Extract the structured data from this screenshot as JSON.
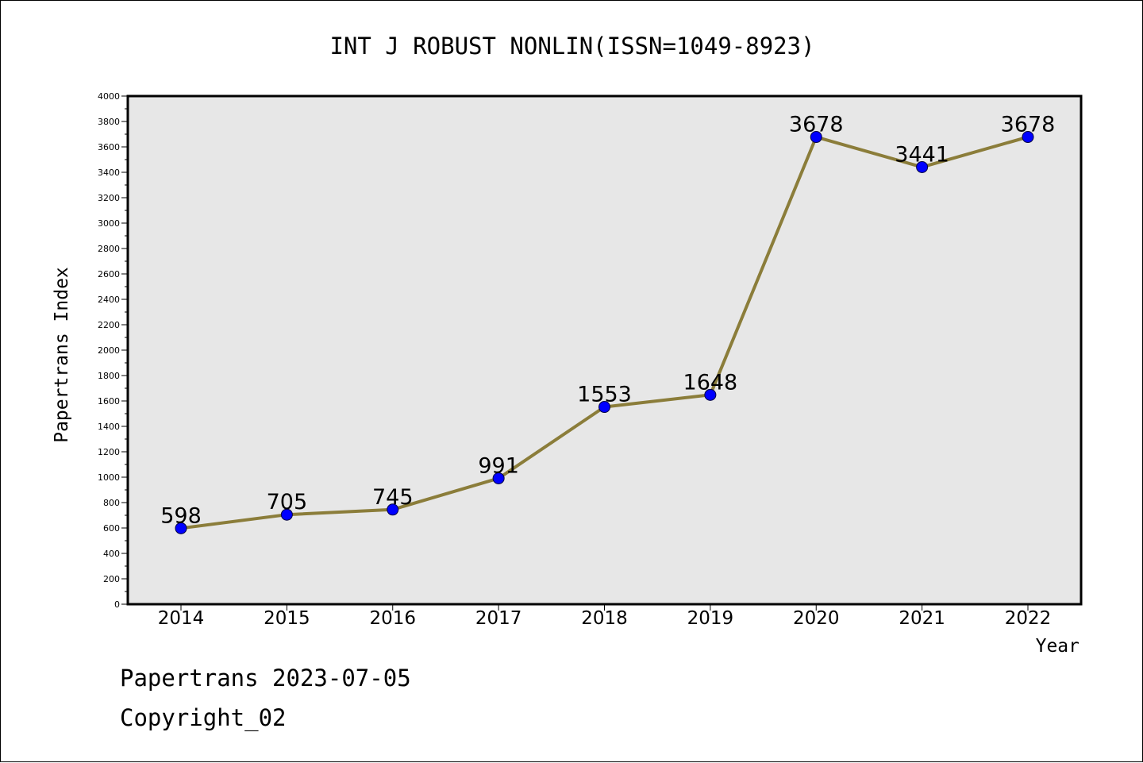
{
  "chart_data": {
    "type": "line",
    "title": "INT J ROBUST NONLIN(ISSN=1049-8923)",
    "xlabel": "Year",
    "ylabel": "Papertrans Index",
    "categories": [
      "2014",
      "2015",
      "2016",
      "2017",
      "2018",
      "2019",
      "2020",
      "2021",
      "2022"
    ],
    "values": [
      598,
      705,
      745,
      991,
      1553,
      1648,
      3678,
      3441,
      3678
    ],
    "data_labels": [
      "598",
      "705",
      "745",
      "991",
      "1553",
      "1648",
      "3678",
      "3441",
      "3678"
    ],
    "ylim": [
      0,
      4000
    ],
    "yticks": [
      "0",
      "200",
      "400",
      "600",
      "800",
      "1000",
      "1200",
      "1400",
      "1600",
      "1800",
      "2000",
      "2200",
      "2400",
      "2600",
      "2800",
      "3000",
      "3200",
      "3400",
      "3600",
      "3800",
      "4000"
    ],
    "grid": false,
    "legend": "none",
    "colors": {
      "line": "#8b7d3a",
      "marker": "#0000ff",
      "plot_background": "#e7e7e7"
    }
  },
  "footer": {
    "source": "Papertrans 2023-07-05",
    "copyright": "Copyright_02"
  }
}
